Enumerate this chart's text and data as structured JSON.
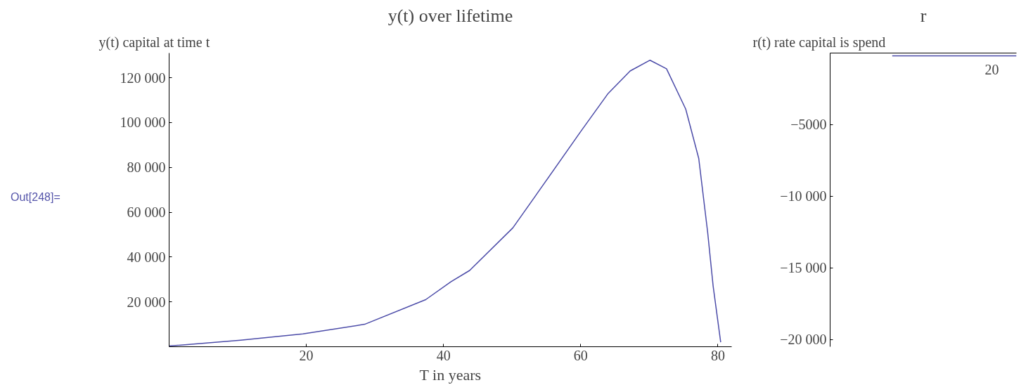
{
  "chart_data": [
    {
      "type": "line",
      "title": "y(t) over lifetime",
      "xlabel": "T in years",
      "ylabel": "y(t) capital  at time t",
      "annotations": [
        "Out[248]="
      ],
      "x": [
        0,
        10.4,
        19.5,
        28.5,
        37.4,
        41.1,
        43.8,
        50.1,
        54.6,
        60,
        64,
        67.2,
        70.1,
        72.5,
        75.3,
        77.2,
        78.5,
        79.3,
        80.4
      ],
      "series": [
        {
          "color": "#4b4ba8",
          "values": [
            300,
            2900,
            5700,
            10000,
            21000,
            29000,
            34000,
            53000,
            72500,
            96000,
            113000,
            123000,
            127800,
            124000,
            106000,
            84000,
            51000,
            27000,
            2000
          ]
        }
      ],
      "xlim": [
        0,
        82
      ],
      "ylim": [
        0,
        131000
      ],
      "xticks": [
        20,
        40,
        60,
        80
      ],
      "yticks": [
        20000,
        40000,
        60000,
        80000,
        100000,
        120000
      ],
      "grid": false
    },
    {
      "type": "line",
      "title": "r",
      "ylabel": "r(t) rate capital  is spend",
      "annotations": [
        "20"
      ],
      "categories": [
        null,
        null,
        null,
        null
      ],
      "series": [
        {
          "color": "#4b4ba8",
          "values": [
            null,
            -200,
            -200,
            -200
          ]
        }
      ],
      "ylim": [
        -20500,
        0
      ],
      "yticks": [
        -5000,
        -10000,
        -15000,
        -20000
      ],
      "grid": false
    }
  ]
}
